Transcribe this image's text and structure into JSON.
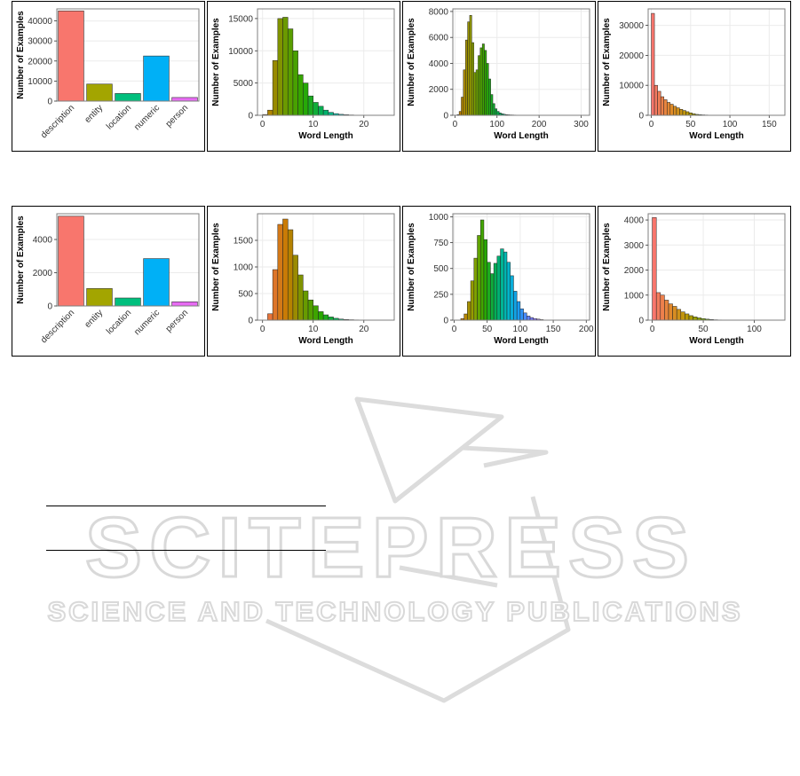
{
  "colors": {
    "description": "#F8766D",
    "entity": "#A3A500",
    "location": "#00BF7D",
    "numeric": "#00B0F6",
    "person": "#E76BF3",
    "plot_border": "#7f7f7f",
    "grid": "#ebebeb",
    "watermark": "#d9d9d9"
  },
  "watermark": {
    "title": "SCITEPRESS",
    "subtitle": "SCIENCE AND TECHNOLOGY PUBLICATIONS"
  },
  "chart_data": [
    {
      "type": "bar",
      "row": 1,
      "xlabel": "",
      "ylabel": "Number of Examples",
      "categories": [
        "description",
        "entity",
        "location",
        "numeric",
        "person"
      ],
      "values": [
        45000,
        8500,
        3800,
        22500,
        1800
      ],
      "ylim": [
        0,
        46000
      ],
      "yticks": [
        0,
        10000,
        20000,
        30000,
        40000
      ],
      "ytick_labels": [
        "0",
        "10000",
        "20000",
        "30000",
        "40000"
      ],
      "grid": true
    },
    {
      "type": "histogram",
      "row": 1,
      "xlabel": "Word Length",
      "ylabel": "Number of Examples",
      "x_start": 0,
      "bin_width": 1,
      "values": [
        120,
        800,
        8500,
        15000,
        15200,
        13400,
        10000,
        6300,
        5000,
        3000,
        2000,
        1400,
        800,
        450,
        260,
        150,
        90,
        55,
        30,
        20,
        12,
        8,
        5,
        3
      ],
      "xlim": [
        -1,
        26
      ],
      "ylim": [
        0,
        16500
      ],
      "xticks": [
        0,
        10,
        20
      ],
      "yticks": [
        0,
        5000,
        10000,
        15000
      ],
      "ytick_labels": [
        "0",
        "5000",
        "10000",
        "15000"
      ],
      "gradient": [
        "#C77C00",
        "#6E9900",
        "#2AA800",
        "#00B05E",
        "#00B7C7",
        "#1B9BF6",
        "#6E7CFF"
      ],
      "grid": true
    },
    {
      "type": "histogram",
      "row": 1,
      "xlabel": "Word Length",
      "ylabel": "Number of Examples",
      "x_start": 5,
      "bin_width": 5,
      "values": [
        50,
        300,
        1400,
        3500,
        5800,
        7200,
        7700,
        5600,
        3300,
        3500,
        4600,
        5200,
        5500,
        5000,
        4000,
        2800,
        1600,
        900,
        500,
        300,
        180,
        120,
        80,
        50,
        40,
        30,
        25,
        20,
        15,
        10,
        8,
        6,
        5,
        4,
        3,
        2,
        2,
        1,
        1,
        1,
        1
      ],
      "xlim": [
        -5,
        320
      ],
      "ylim": [
        0,
        8200
      ],
      "xticks": [
        0,
        100,
        200,
        300
      ],
      "yticks": [
        0,
        2000,
        4000,
        6000,
        8000
      ],
      "ytick_labels": [
        "0",
        "2000",
        "4000",
        "6000",
        "8000"
      ],
      "gradient": [
        "#C77C00",
        "#8FA000",
        "#2AA800",
        "#00B05E",
        "#00B7C7",
        "#1B9BF6",
        "#6E7CFF"
      ],
      "grid": true
    },
    {
      "type": "histogram",
      "row": 1,
      "xlabel": "Word Length",
      "ylabel": "Number of Examples",
      "x_start": 0,
      "bin_width": 4,
      "values": [
        34000,
        10000,
        8000,
        6200,
        5200,
        4300,
        3700,
        3000,
        2500,
        2000,
        1600,
        1200,
        800,
        500,
        300,
        200,
        140,
        100,
        70,
        50,
        35,
        25,
        15,
        10,
        8,
        6,
        5,
        4,
        3,
        2
      ],
      "xlim": [
        -4,
        170
      ],
      "ylim": [
        0,
        35500
      ],
      "xticks": [
        0,
        50,
        100,
        150
      ],
      "yticks": [
        0,
        10000,
        20000,
        30000
      ],
      "ytick_labels": [
        "0",
        "10000",
        "20000",
        "30000"
      ],
      "gradient": [
        "#F8766D",
        "#E08A2A",
        "#B59A00",
        "#6EA800",
        "#2AAD30",
        "#00B06E"
      ],
      "grid": true
    },
    {
      "type": "bar",
      "row": 2,
      "xlabel": "",
      "ylabel": "Number of Examples",
      "categories": [
        "description",
        "entity",
        "location",
        "numeric",
        "person"
      ],
      "values": [
        5400,
        1050,
        480,
        2850,
        250
      ],
      "ylim": [
        0,
        5550
      ],
      "yticks": [
        0,
        2000,
        4000
      ],
      "ytick_labels": [
        "0",
        "2000",
        "4000"
      ],
      "grid": true
    },
    {
      "type": "histogram",
      "row": 2,
      "xlabel": "Word Length",
      "ylabel": "Number of Examples",
      "x_start": 1,
      "bin_width": 1,
      "values": [
        120,
        950,
        1800,
        1900,
        1700,
        1220,
        850,
        550,
        380,
        270,
        160,
        100,
        60,
        35,
        20,
        12,
        8,
        5,
        3,
        2,
        1
      ],
      "xlim": [
        -1,
        26
      ],
      "ylim": [
        0,
        2000
      ],
      "xticks": [
        0,
        10,
        20
      ],
      "yticks": [
        0,
        500,
        1000,
        1500
      ],
      "ytick_labels": [
        "0",
        "500",
        "1000",
        "1500"
      ],
      "gradient": [
        "#E8743A",
        "#C77C00",
        "#6E9900",
        "#2AA800",
        "#00B05E",
        "#00B7C7",
        "#1B9BF6"
      ],
      "grid": true
    },
    {
      "type": "histogram",
      "row": 2,
      "xlabel": "Word Length",
      "ylabel": "Number of Examples",
      "x_start": 10,
      "bin_width": 5,
      "values": [
        15,
        60,
        180,
        380,
        600,
        820,
        970,
        780,
        560,
        450,
        550,
        620,
        690,
        660,
        560,
        430,
        280,
        180,
        110,
        70,
        40,
        25,
        15,
        10,
        5
      ],
      "xlim": [
        -2,
        205
      ],
      "ylim": [
        0,
        1030
      ],
      "xticks": [
        0,
        50,
        100,
        150,
        200
      ],
      "yticks": [
        0,
        250,
        500,
        750,
        1000
      ],
      "ytick_labels": [
        "0",
        "250",
        "500",
        "750",
        "1000"
      ],
      "gradient": [
        "#C77C00",
        "#8FA000",
        "#2AA800",
        "#00B05E",
        "#00B7C7",
        "#1B9BF6",
        "#6E7CFF",
        "#C77CFF"
      ],
      "grid": true
    },
    {
      "type": "histogram",
      "row": 2,
      "xlabel": "Word Length",
      "ylabel": "Number of Examples",
      "x_start": 0,
      "bin_width": 4,
      "values": [
        4100,
        1100,
        1000,
        800,
        650,
        550,
        430,
        330,
        250,
        180,
        130,
        90,
        60,
        40,
        25,
        15,
        10,
        6,
        4,
        3,
        2,
        1
      ],
      "xlim": [
        -4,
        130
      ],
      "ylim": [
        0,
        4250
      ],
      "xticks": [
        0,
        50,
        100
      ],
      "yticks": [
        0,
        1000,
        2000,
        3000,
        4000
      ],
      "ytick_labels": [
        "0",
        "1000",
        "2000",
        "3000",
        "4000"
      ],
      "gradient": [
        "#F8766D",
        "#E08A2A",
        "#B59A00",
        "#6EA800",
        "#2AAD30",
        "#00B06E"
      ],
      "grid": true
    }
  ]
}
